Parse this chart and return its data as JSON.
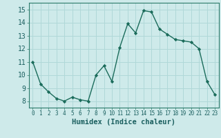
{
  "x": [
    0,
    1,
    2,
    3,
    4,
    5,
    6,
    7,
    8,
    9,
    10,
    11,
    12,
    13,
    14,
    15,
    16,
    17,
    18,
    19,
    20,
    21,
    22,
    23
  ],
  "y": [
    11.0,
    9.3,
    8.7,
    8.2,
    8.0,
    8.3,
    8.1,
    8.0,
    10.0,
    10.7,
    9.5,
    12.1,
    13.9,
    13.2,
    14.9,
    14.8,
    13.5,
    13.1,
    12.7,
    12.6,
    12.5,
    12.0,
    9.5,
    8.5
  ],
  "line_color": "#1a6b5a",
  "marker": "D",
  "marker_size": 2.2,
  "line_width": 1.0,
  "xlabel": "Humidex (Indice chaleur)",
  "xlabel_fontsize": 7.5,
  "ytick_fontsize": 7,
  "xtick_fontsize": 5.5,
  "background_color": "#ceeaea",
  "grid_color": "#b0d8d8",
  "xlim": [
    -0.5,
    23.5
  ],
  "ylim": [
    7.5,
    15.5
  ],
  "yticks": [
    8,
    9,
    10,
    11,
    12,
    13,
    14,
    15
  ],
  "xtick_labels": [
    "0",
    "1",
    "2",
    "3",
    "4",
    "5",
    "6",
    "7",
    "8",
    "9",
    "10",
    "11",
    "12",
    "13",
    "14",
    "15",
    "16",
    "17",
    "18",
    "19",
    "20",
    "21",
    "22",
    "23"
  ]
}
